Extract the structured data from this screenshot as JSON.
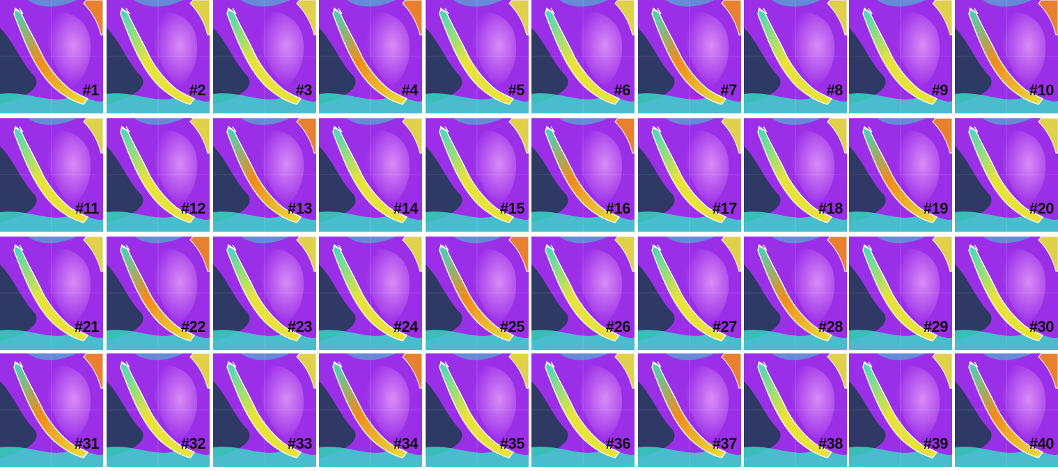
{
  "panel_labels": [
    "#1",
    "#2",
    "#3",
    "#4",
    "#5",
    "#6",
    "#7",
    "#8",
    "#9",
    "#10",
    "#11",
    "#12",
    "#13",
    "#14",
    "#15",
    "#16",
    "#17",
    "#18",
    "#19",
    "#20",
    "#21",
    "#22",
    "#23",
    "#24",
    "#25",
    "#26",
    "#27",
    "#28",
    "#29",
    "#30",
    "#31",
    "#32",
    "#33",
    "#34",
    "#35",
    "#36",
    "#37",
    "#38",
    "#39",
    "#40"
  ],
  "colors": {
    "land": "#9b2fe8",
    "land_light": "#d98cf7",
    "water_dark": "#0b3d3a",
    "water_teal": "#3bd6c8",
    "warm_yellow": "#e8e23a",
    "warm_orange": "#f08a1c",
    "coast": "#ffffff",
    "border": "#ffffff"
  }
}
